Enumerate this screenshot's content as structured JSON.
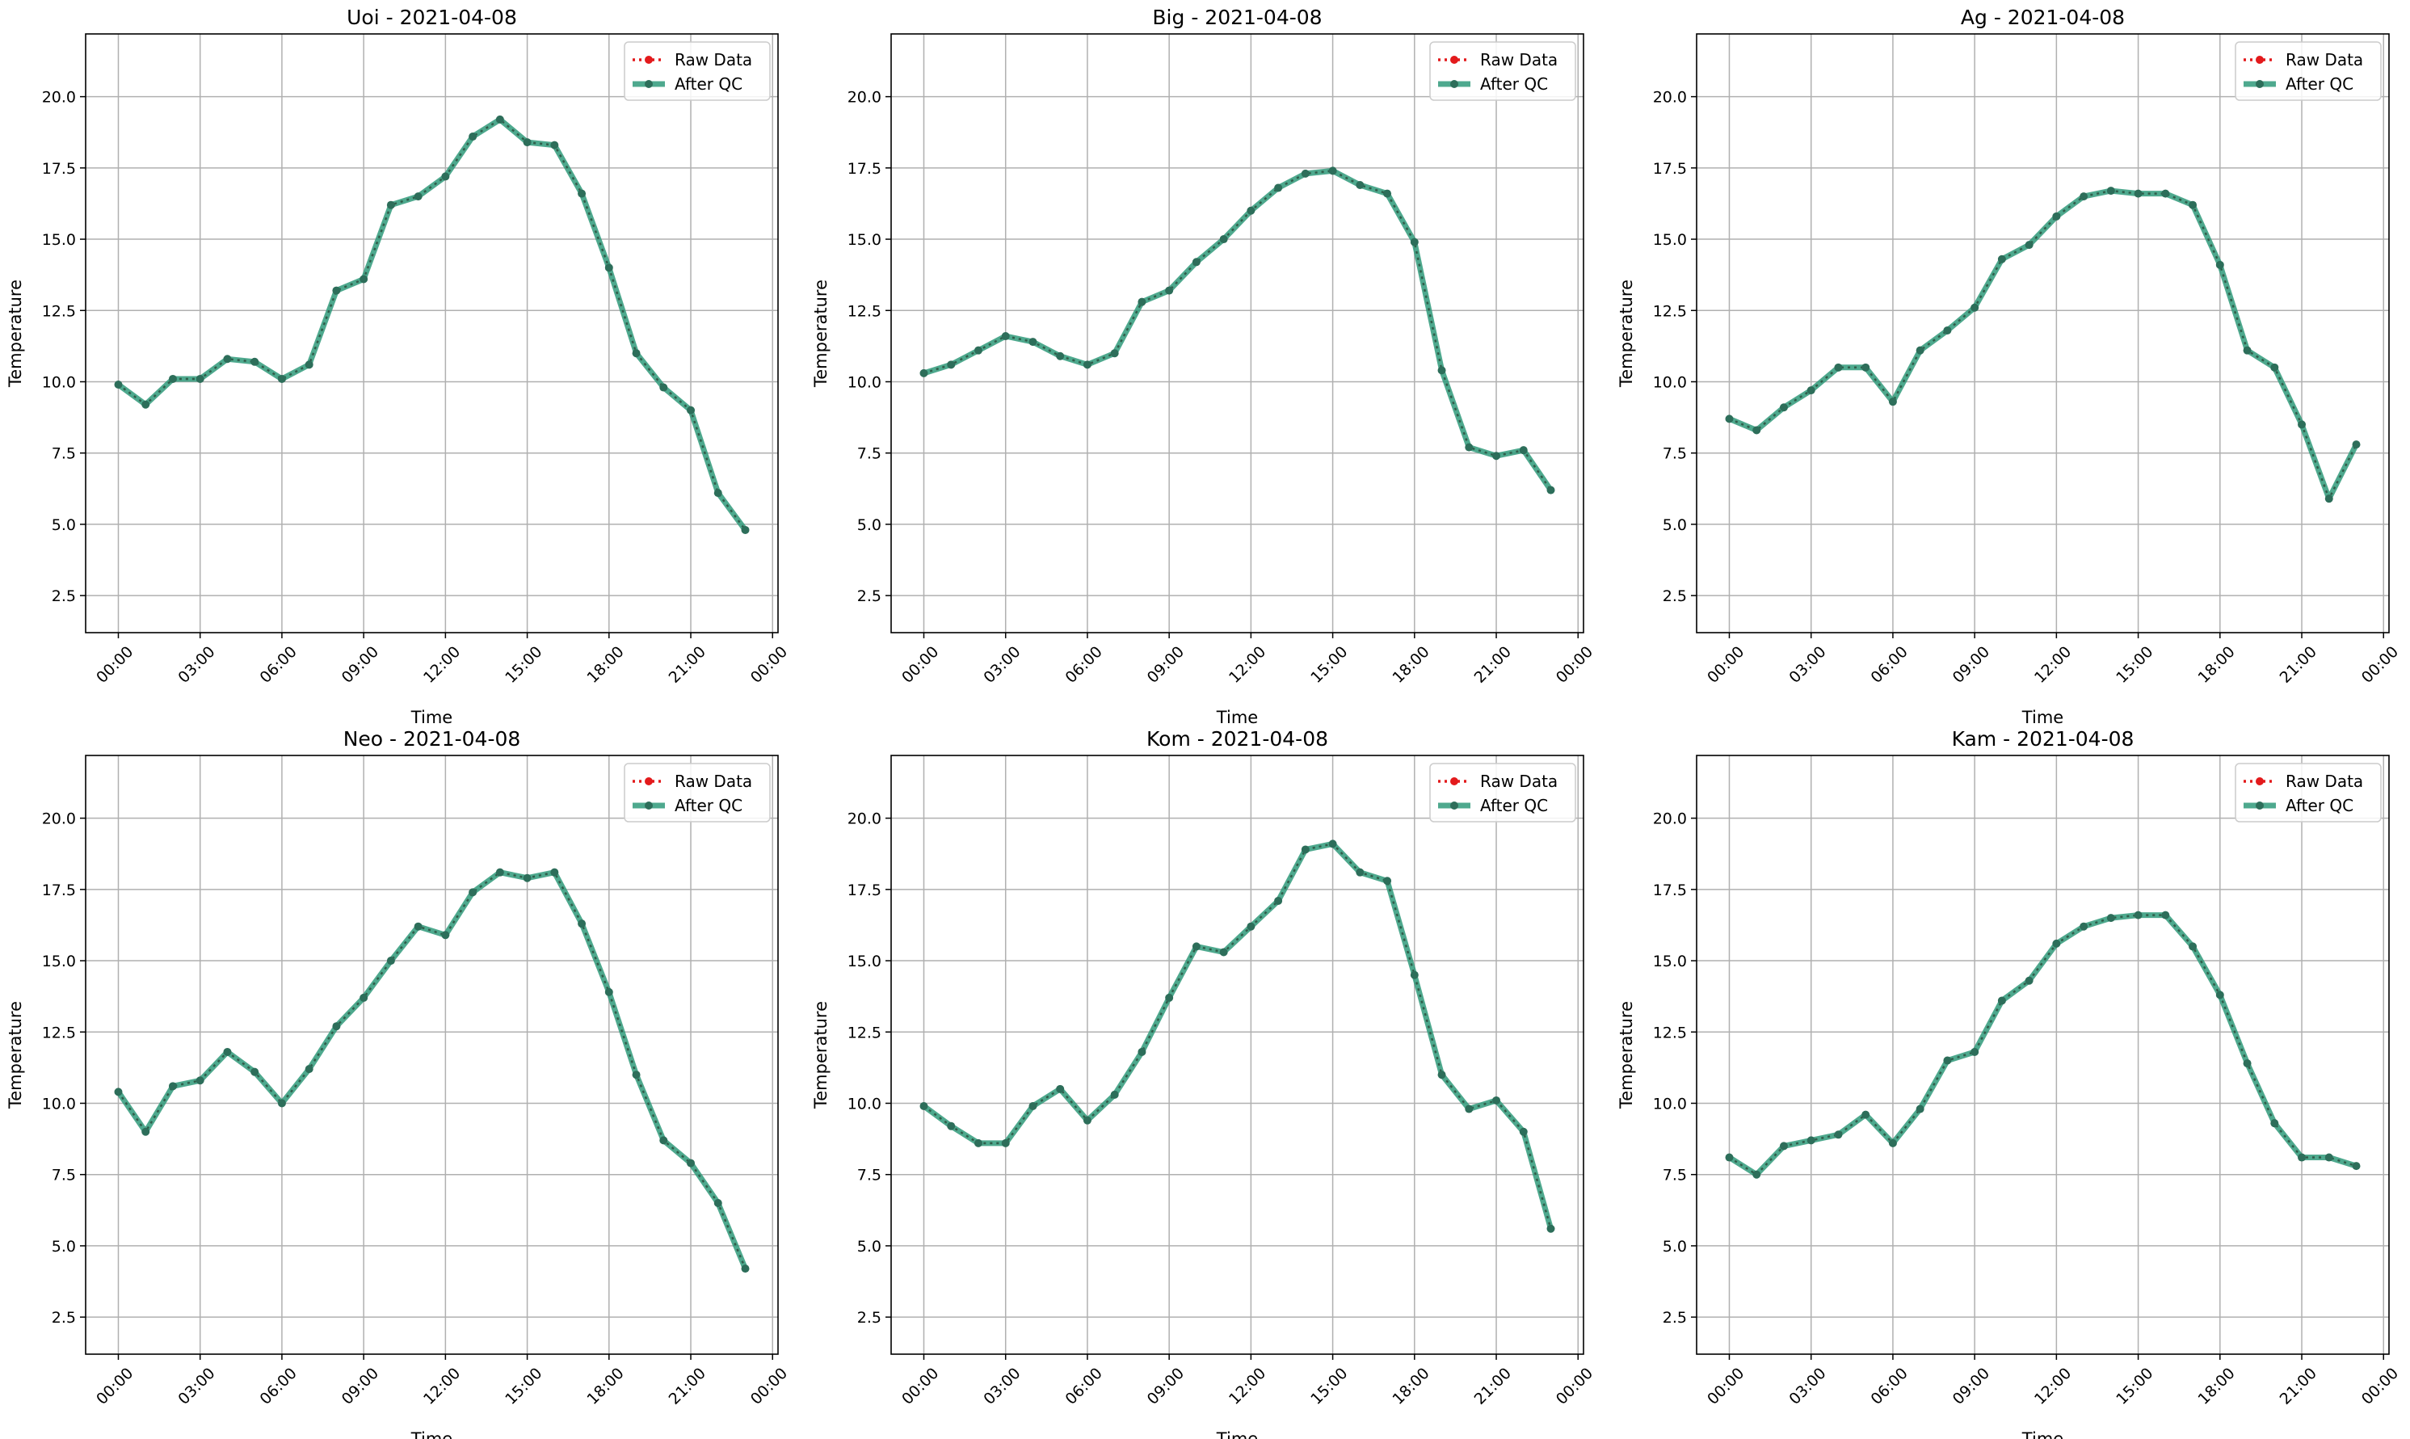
{
  "colors": {
    "raw": "#e31a1c",
    "qc": "#2f9a7a",
    "grid": "#b0b0b0",
    "axes": "#000000"
  },
  "legend": {
    "raw_label": "Raw Data",
    "qc_label": "After QC",
    "placement": "top-right"
  },
  "chart_data": [
    {
      "type": "line",
      "title": "Uoi - 2021-04-08",
      "xlabel": "Time",
      "ylabel": "Temperature",
      "grid": true,
      "xlim": [
        -1.2,
        24.2
      ],
      "ylim": [
        1.2,
        22.2
      ],
      "x_ticks": [
        "00:00",
        "03:00",
        "06:00",
        "09:00",
        "12:00",
        "15:00",
        "18:00",
        "21:00",
        "00:00"
      ],
      "y_ticks": [
        "2.5",
        "5.0",
        "7.5",
        "10.0",
        "12.5",
        "15.0",
        "17.5",
        "20.0"
      ],
      "x": [
        0,
        1,
        2,
        3,
        4,
        5,
        6,
        7,
        8,
        9,
        10,
        11,
        12,
        13,
        14,
        15,
        16,
        17,
        18,
        19,
        20,
        21,
        22,
        23
      ],
      "series": [
        {
          "name": "Raw Data",
          "values": [
            9.9,
            9.2,
            10.1,
            10.1,
            10.8,
            10.7,
            10.1,
            10.6,
            13.2,
            13.6,
            16.2,
            16.5,
            17.2,
            18.6,
            19.2,
            18.4,
            18.3,
            16.6,
            14.0,
            11.0,
            9.8,
            9.0,
            6.1,
            4.8
          ]
        },
        {
          "name": "After QC",
          "values": [
            9.9,
            9.2,
            10.1,
            10.1,
            10.8,
            10.7,
            10.1,
            10.6,
            13.2,
            13.6,
            16.2,
            16.5,
            17.2,
            18.6,
            19.2,
            18.4,
            18.3,
            16.6,
            14.0,
            11.0,
            9.8,
            9.0,
            6.1,
            4.8
          ]
        }
      ]
    },
    {
      "type": "line",
      "title": "Big - 2021-04-08",
      "xlabel": "Time",
      "ylabel": "Temperature",
      "grid": true,
      "xlim": [
        -1.2,
        24.2
      ],
      "ylim": [
        1.2,
        22.2
      ],
      "x_ticks": [
        "00:00",
        "03:00",
        "06:00",
        "09:00",
        "12:00",
        "15:00",
        "18:00",
        "21:00",
        "00:00"
      ],
      "y_ticks": [
        "2.5",
        "5.0",
        "7.5",
        "10.0",
        "12.5",
        "15.0",
        "17.5",
        "20.0"
      ],
      "x": [
        0,
        1,
        2,
        3,
        4,
        5,
        6,
        7,
        8,
        9,
        10,
        11,
        12,
        13,
        14,
        15,
        16,
        17,
        18,
        19,
        20,
        21,
        22,
        23
      ],
      "series": [
        {
          "name": "Raw Data",
          "values": [
            10.3,
            10.6,
            11.1,
            11.6,
            11.4,
            10.9,
            10.6,
            11.0,
            12.8,
            13.2,
            14.2,
            15.0,
            16.0,
            16.8,
            17.3,
            17.4,
            16.9,
            16.6,
            14.9,
            10.4,
            7.7,
            7.4,
            7.6,
            6.2
          ]
        },
        {
          "name": "After QC",
          "values": [
            10.3,
            10.6,
            11.1,
            11.6,
            11.4,
            10.9,
            10.6,
            11.0,
            12.8,
            13.2,
            14.2,
            15.0,
            16.0,
            16.8,
            17.3,
            17.4,
            16.9,
            16.6,
            14.9,
            10.4,
            7.7,
            7.4,
            7.6,
            6.2
          ]
        }
      ]
    },
    {
      "type": "line",
      "title": "Ag - 2021-04-08",
      "xlabel": "Time",
      "ylabel": "Temperature",
      "grid": true,
      "xlim": [
        -1.2,
        24.2
      ],
      "ylim": [
        1.2,
        22.2
      ],
      "x_ticks": [
        "00:00",
        "03:00",
        "06:00",
        "09:00",
        "12:00",
        "15:00",
        "18:00",
        "21:00",
        "00:00"
      ],
      "y_ticks": [
        "2.5",
        "5.0",
        "7.5",
        "10.0",
        "12.5",
        "15.0",
        "17.5",
        "20.0"
      ],
      "x": [
        0,
        1,
        2,
        3,
        4,
        5,
        6,
        7,
        8,
        9,
        10,
        11,
        12,
        13,
        14,
        15,
        16,
        17,
        18,
        19,
        20,
        21,
        22,
        23
      ],
      "series": [
        {
          "name": "Raw Data",
          "values": [
            8.7,
            8.3,
            9.1,
            9.7,
            10.5,
            10.5,
            9.3,
            11.1,
            11.8,
            12.6,
            14.3,
            14.8,
            15.8,
            16.5,
            16.7,
            16.6,
            16.6,
            16.2,
            14.1,
            11.1,
            10.5,
            8.5,
            5.9,
            7.8
          ]
        },
        {
          "name": "After QC",
          "values": [
            8.7,
            8.3,
            9.1,
            9.7,
            10.5,
            10.5,
            9.3,
            11.1,
            11.8,
            12.6,
            14.3,
            14.8,
            15.8,
            16.5,
            16.7,
            16.6,
            16.6,
            16.2,
            14.1,
            11.1,
            10.5,
            8.5,
            5.9,
            7.8
          ]
        }
      ]
    },
    {
      "type": "line",
      "title": "Neo - 2021-04-08",
      "xlabel": "Time",
      "ylabel": "Temperature",
      "grid": true,
      "xlim": [
        -1.2,
        24.2
      ],
      "ylim": [
        1.2,
        22.2
      ],
      "x_ticks": [
        "00:00",
        "03:00",
        "06:00",
        "09:00",
        "12:00",
        "15:00",
        "18:00",
        "21:00",
        "00:00"
      ],
      "y_ticks": [
        "2.5",
        "5.0",
        "7.5",
        "10.0",
        "12.5",
        "15.0",
        "17.5",
        "20.0"
      ],
      "x": [
        0,
        1,
        2,
        3,
        4,
        5,
        6,
        7,
        8,
        9,
        10,
        11,
        12,
        13,
        14,
        15,
        16,
        17,
        18,
        19,
        20,
        21,
        22,
        23
      ],
      "series": [
        {
          "name": "Raw Data",
          "values": [
            10.4,
            9.0,
            10.6,
            10.8,
            11.8,
            11.1,
            10.0,
            11.2,
            12.7,
            13.7,
            15.0,
            16.2,
            15.9,
            17.4,
            18.1,
            17.9,
            18.1,
            16.3,
            13.9,
            11.0,
            8.7,
            7.9,
            6.5,
            4.2
          ]
        },
        {
          "name": "After QC",
          "values": [
            10.4,
            9.0,
            10.6,
            10.8,
            11.8,
            11.1,
            10.0,
            11.2,
            12.7,
            13.7,
            15.0,
            16.2,
            15.9,
            17.4,
            18.1,
            17.9,
            18.1,
            16.3,
            13.9,
            11.0,
            8.7,
            7.9,
            6.5,
            4.2
          ]
        }
      ]
    },
    {
      "type": "line",
      "title": "Kom - 2021-04-08",
      "xlabel": "Time",
      "ylabel": "Temperature",
      "grid": true,
      "xlim": [
        -1.2,
        24.2
      ],
      "ylim": [
        1.2,
        22.2
      ],
      "x_ticks": [
        "00:00",
        "03:00",
        "06:00",
        "09:00",
        "12:00",
        "15:00",
        "18:00",
        "21:00",
        "00:00"
      ],
      "y_ticks": [
        "2.5",
        "5.0",
        "7.5",
        "10.0",
        "12.5",
        "15.0",
        "17.5",
        "20.0"
      ],
      "x": [
        0,
        1,
        2,
        3,
        4,
        5,
        6,
        7,
        8,
        9,
        10,
        11,
        12,
        13,
        14,
        15,
        16,
        17,
        18,
        19,
        20,
        21,
        22,
        23
      ],
      "series": [
        {
          "name": "Raw Data",
          "values": [
            9.9,
            9.2,
            8.6,
            8.6,
            9.9,
            10.5,
            9.4,
            10.3,
            11.8,
            13.7,
            15.5,
            15.3,
            16.2,
            17.1,
            18.9,
            19.1,
            18.1,
            17.8,
            14.5,
            11.0,
            9.8,
            10.1,
            9.0,
            5.6
          ]
        },
        {
          "name": "After QC",
          "values": [
            9.9,
            9.2,
            8.6,
            8.6,
            9.9,
            10.5,
            9.4,
            10.3,
            11.8,
            13.7,
            15.5,
            15.3,
            16.2,
            17.1,
            18.9,
            19.1,
            18.1,
            17.8,
            14.5,
            11.0,
            9.8,
            10.1,
            9.0,
            5.6
          ]
        }
      ]
    },
    {
      "type": "line",
      "title": "Kam - 2021-04-08",
      "xlabel": "Time",
      "ylabel": "Temperature",
      "grid": true,
      "xlim": [
        -1.2,
        24.2
      ],
      "ylim": [
        1.2,
        22.2
      ],
      "x_ticks": [
        "00:00",
        "03:00",
        "06:00",
        "09:00",
        "12:00",
        "15:00",
        "18:00",
        "21:00",
        "00:00"
      ],
      "y_ticks": [
        "2.5",
        "5.0",
        "7.5",
        "10.0",
        "12.5",
        "15.0",
        "17.5",
        "20.0"
      ],
      "x": [
        0,
        1,
        2,
        3,
        4,
        5,
        6,
        7,
        8,
        9,
        10,
        11,
        12,
        13,
        14,
        15,
        16,
        17,
        18,
        19,
        20,
        21,
        22,
        23
      ],
      "series": [
        {
          "name": "Raw Data",
          "values": [
            8.1,
            7.5,
            8.5,
            8.7,
            8.9,
            9.6,
            8.6,
            9.8,
            11.5,
            11.8,
            13.6,
            14.3,
            15.6,
            16.2,
            16.5,
            16.6,
            16.6,
            15.5,
            13.8,
            11.4,
            9.3,
            8.1,
            8.1,
            7.8
          ]
        },
        {
          "name": "After QC",
          "values": [
            8.1,
            7.5,
            8.5,
            8.7,
            8.9,
            9.6,
            8.6,
            9.8,
            11.5,
            11.8,
            13.6,
            14.3,
            15.6,
            16.2,
            16.5,
            16.6,
            16.6,
            15.5,
            13.8,
            11.4,
            9.3,
            8.1,
            8.1,
            7.8
          ]
        }
      ]
    }
  ]
}
